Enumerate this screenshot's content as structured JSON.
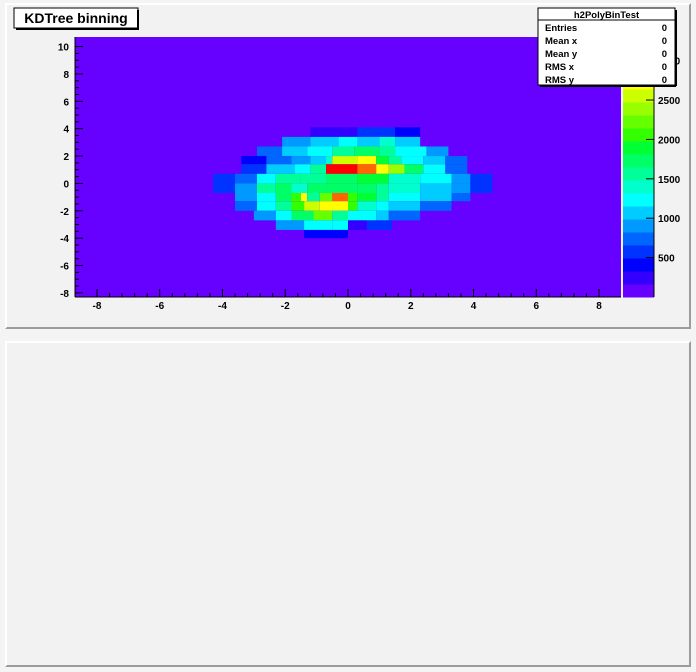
{
  "chart_data": {
    "type": "heatmap",
    "title": "KDTree binning",
    "xlim": [
      -8.7,
      8.7
    ],
    "ylim": [
      -8.3,
      10.7
    ],
    "xticks": [
      -8,
      -6,
      -4,
      -2,
      0,
      2,
      4,
      6,
      8
    ],
    "yticks": [
      -8,
      -6,
      -4,
      -2,
      0,
      2,
      4,
      6,
      8,
      10
    ],
    "zlim": [
      0,
      3300
    ],
    "zticks": [
      500,
      1000,
      1500,
      2000,
      2500,
      3000
    ],
    "zticks_labels": [
      "500",
      "1000",
      "1500",
      "2000",
      "2500",
      "3000"
    ],
    "background_value": 0,
    "rows": [
      {
        "y": [
          3.4,
          4.1
        ],
        "bins": [
          [
            -1.2,
            0.3,
            300
          ],
          [
            0.3,
            1.5,
            600
          ],
          [
            1.5,
            2.3,
            400
          ]
        ]
      },
      {
        "y": [
          2.7,
          3.4
        ],
        "bins": [
          [
            -2.1,
            -1.2,
            900
          ],
          [
            -1.2,
            -0.3,
            1000
          ],
          [
            -0.3,
            0.3,
            1300
          ],
          [
            0.3,
            1.0,
            1100
          ],
          [
            1.0,
            1.5,
            1400
          ],
          [
            1.5,
            2.3,
            1000
          ]
        ]
      },
      {
        "y": [
          2.0,
          2.7
        ],
        "bins": [
          [
            -2.9,
            -2.1,
            800
          ],
          [
            -2.1,
            -1.3,
            1100
          ],
          [
            -1.3,
            -0.5,
            1300
          ],
          [
            -0.5,
            0.2,
            1600
          ],
          [
            0.2,
            1.0,
            1700
          ],
          [
            1.0,
            1.5,
            1500
          ],
          [
            1.5,
            2.5,
            1300
          ],
          [
            2.5,
            3.2,
            900
          ]
        ]
      },
      {
        "y": [
          1.4,
          2.0
        ],
        "bins": [
          [
            -3.4,
            -2.6,
            400
          ],
          [
            -2.6,
            -1.8,
            700
          ],
          [
            -1.8,
            -1.2,
            900
          ],
          [
            -1.2,
            -0.7,
            1100
          ],
          [
            -0.7,
            -0.5,
            1400
          ],
          [
            -0.5,
            0.3,
            2500
          ],
          [
            0.3,
            0.9,
            2700
          ],
          [
            0.9,
            1.3,
            1900
          ],
          [
            1.3,
            1.7,
            1600
          ],
          [
            1.7,
            2.4,
            1300
          ],
          [
            2.4,
            3.1,
            1100
          ],
          [
            3.1,
            3.8,
            700
          ]
        ]
      },
      {
        "y": [
          0.7,
          1.4
        ],
        "bins": [
          [
            -3.4,
            -2.6,
            500
          ],
          [
            -2.6,
            -1.7,
            1000
          ],
          [
            -1.7,
            -1.2,
            1200
          ],
          [
            -1.2,
            -0.7,
            1500
          ],
          [
            -0.7,
            0.3,
            3200
          ],
          [
            0.3,
            0.9,
            3000
          ],
          [
            0.9,
            1.3,
            2800
          ],
          [
            1.3,
            1.8,
            2400
          ],
          [
            1.8,
            2.4,
            1700
          ],
          [
            2.4,
            3.1,
            1200
          ],
          [
            3.1,
            3.8,
            800
          ]
        ]
      },
      {
        "y": [
          0.0,
          0.7
        ],
        "bins": [
          [
            -4.3,
            -3.6,
            500
          ],
          [
            -3.6,
            -2.9,
            800
          ],
          [
            -2.9,
            -2.3,
            1300
          ],
          [
            -2.3,
            -1.5,
            1500
          ],
          [
            -1.5,
            -0.7,
            1600
          ],
          [
            -0.7,
            0.3,
            1800
          ],
          [
            0.3,
            1.3,
            1900
          ],
          [
            1.3,
            2.3,
            1400
          ],
          [
            2.3,
            3.3,
            1200
          ],
          [
            3.3,
            3.9,
            900
          ],
          [
            3.9,
            4.6,
            500
          ]
        ]
      },
      {
        "y": [
          -0.7,
          0.0
        ],
        "bins": [
          [
            -4.3,
            -3.6,
            500
          ],
          [
            -3.6,
            -2.9,
            900
          ],
          [
            -2.9,
            -2.3,
            1600
          ],
          [
            -2.3,
            -1.8,
            1800
          ],
          [
            -1.8,
            -1.3,
            1400
          ],
          [
            -1.3,
            -0.7,
            1700
          ],
          [
            -0.7,
            0.3,
            1800
          ],
          [
            0.3,
            0.9,
            1700
          ],
          [
            0.9,
            1.3,
            1600
          ],
          [
            1.3,
            2.3,
            1400
          ],
          [
            2.3,
            3.3,
            1100
          ],
          [
            3.3,
            3.9,
            900
          ],
          [
            3.9,
            4.6,
            500
          ]
        ]
      },
      {
        "y": [
          -1.3,
          -0.7
        ],
        "bins": [
          [
            -3.6,
            -2.9,
            900
          ],
          [
            -2.9,
            -2.3,
            1300
          ],
          [
            -2.3,
            -1.8,
            1700
          ],
          [
            -1.8,
            -1.5,
            2100
          ],
          [
            -1.5,
            -1.3,
            2800
          ],
          [
            -1.3,
            -0.9,
            1600
          ],
          [
            -0.9,
            -0.5,
            2200
          ],
          [
            -0.5,
            0.0,
            3000
          ],
          [
            0.0,
            0.3,
            2000
          ],
          [
            0.3,
            0.9,
            1900
          ],
          [
            0.9,
            1.3,
            1600
          ],
          [
            1.3,
            2.3,
            1300
          ],
          [
            2.3,
            3.3,
            1000
          ],
          [
            3.3,
            3.9,
            700
          ]
        ]
      },
      {
        "y": [
          -2.0,
          -1.3
        ],
        "bins": [
          [
            -3.6,
            -2.9,
            800
          ],
          [
            -2.9,
            -2.3,
            1200
          ],
          [
            -2.3,
            -1.8,
            1500
          ],
          [
            -1.8,
            -1.4,
            2000
          ],
          [
            -1.4,
            -0.9,
            2600
          ],
          [
            -0.9,
            0.0,
            2700
          ],
          [
            0.0,
            0.3,
            2000
          ],
          [
            0.3,
            0.9,
            1400
          ],
          [
            0.9,
            1.3,
            1300
          ],
          [
            1.3,
            2.3,
            1100
          ],
          [
            2.3,
            3.3,
            700
          ]
        ]
      },
      {
        "y": [
          -2.7,
          -2.0
        ],
        "bins": [
          [
            -3.0,
            -2.3,
            900
          ],
          [
            -2.3,
            -1.8,
            1200
          ],
          [
            -1.8,
            -1.1,
            1700
          ],
          [
            -1.1,
            -0.5,
            2200
          ],
          [
            -0.5,
            0.0,
            1600
          ],
          [
            0.0,
            0.9,
            1200
          ],
          [
            0.9,
            1.3,
            1000
          ],
          [
            1.3,
            2.3,
            700
          ]
        ]
      },
      {
        "y": [
          -3.4,
          -2.7
        ],
        "bins": [
          [
            -2.3,
            -1.4,
            900
          ],
          [
            -1.4,
            -0.5,
            1200
          ],
          [
            -0.5,
            0.0,
            1300
          ],
          [
            0.0,
            0.6,
            300
          ],
          [
            0.6,
            1.4,
            500
          ]
        ]
      },
      {
        "y": [
          -4.0,
          -3.4
        ],
        "bins": [
          [
            -1.4,
            0.0,
            400
          ]
        ]
      }
    ],
    "stats": {
      "name": "h2PolyBinTest",
      "entries": [
        {
          "label": "Entries",
          "value": "0"
        },
        {
          "label": "Mean x",
          "value": "0"
        },
        {
          "label": "Mean y",
          "value": "0"
        },
        {
          "label": "RMS x",
          "value": "0"
        },
        {
          "label": "RMS y",
          "value": "0"
        }
      ]
    },
    "colors": {
      "palette": [
        "#6600ff",
        "#3300ff",
        "#0000ff",
        "#0033ff",
        "#0066ff",
        "#0099ff",
        "#00ccff",
        "#00ffff",
        "#00ffcc",
        "#00ff99",
        "#00ff66",
        "#00ff33",
        "#33ff00",
        "#66ff00",
        "#99ff00",
        "#ccff00",
        "#ffff00",
        "#ffcc00",
        "#ff6600",
        "#ff0000"
      ],
      "background": "#6600ff",
      "pad": "#f2f2f2"
    }
  }
}
